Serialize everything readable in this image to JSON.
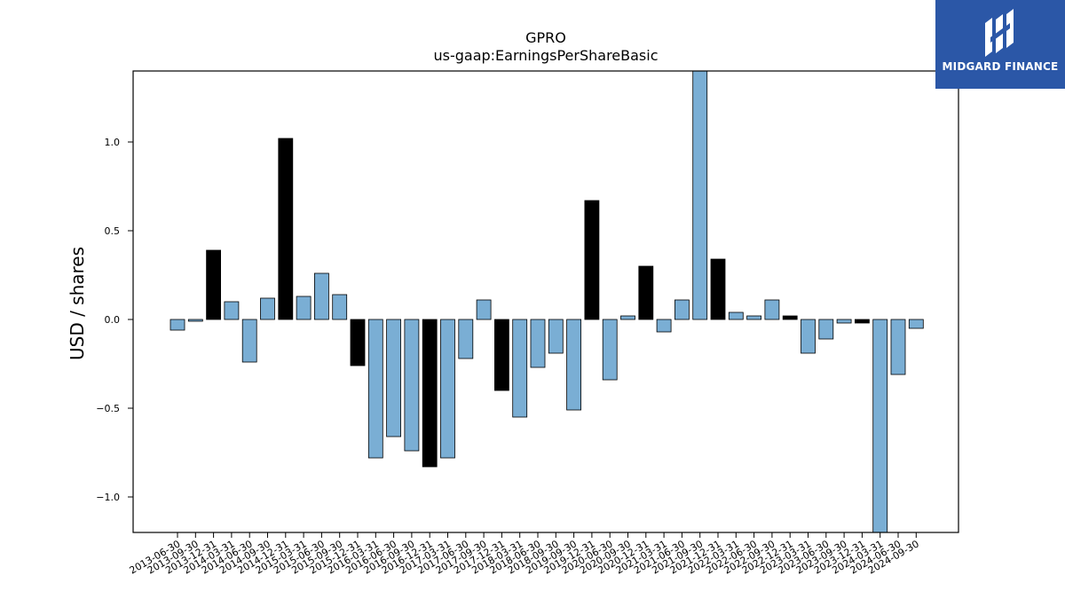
{
  "chart_data": {
    "type": "bar",
    "title": "GPRO",
    "subtitle": "us-gaap:EarningsPerShareBasic",
    "xlabel": "",
    "ylabel": "USD / shares",
    "ylim": [
      -1.2,
      1.4
    ],
    "yticks": [
      -1.0,
      -0.5,
      0.0,
      0.5,
      1.0
    ],
    "ytick_labels": [
      "−1.0",
      "−0.5",
      "0.0",
      "0.5",
      "1.0"
    ],
    "grid": false,
    "colors": {
      "quarterly": "#7aaed4",
      "annual": "#000000"
    },
    "categories": [
      "2013-06-30",
      "2013-09-30",
      "2013-12-31",
      "2014-03-31",
      "2014-06-30",
      "2014-09-30",
      "2014-12-31",
      "2015-03-31",
      "2015-06-30",
      "2015-09-30",
      "2015-12-31",
      "2016-03-31",
      "2016-06-30",
      "2016-09-30",
      "2016-12-31",
      "2017-03-31",
      "2017-06-30",
      "2017-09-30",
      "2017-12-31",
      "2018-03-31",
      "2018-06-30",
      "2018-09-30",
      "2019-09-30",
      "2019-12-31",
      "2020-06-30",
      "2020-09-30",
      "2020-12-31",
      "2021-03-31",
      "2021-06-30",
      "2021-09-30",
      "2021-12-31",
      "2022-03-31",
      "2022-06-30",
      "2022-09-30",
      "2022-12-31",
      "2023-03-31",
      "2023-06-30",
      "2023-09-30",
      "2023-12-31",
      "2024-03-31",
      "2024-06-30",
      "2024-09-30"
    ],
    "values": [
      -0.06,
      -0.01,
      0.39,
      0.1,
      -0.24,
      0.12,
      1.02,
      0.13,
      0.26,
      0.14,
      -0.26,
      -0.78,
      -0.66,
      -0.74,
      -0.83,
      -0.78,
      -0.22,
      0.11,
      -0.4,
      -0.55,
      -0.27,
      -0.19,
      -0.51,
      0.67,
      -0.34,
      0.02,
      0.3,
      -0.07,
      0.11,
      1.4,
      0.34,
      0.04,
      0.02,
      0.11,
      0.02,
      -0.19,
      -0.11,
      -0.02,
      -0.02,
      -1.2,
      -0.31,
      -0.05
    ],
    "bar_kind": [
      "q",
      "q",
      "a",
      "q",
      "q",
      "q",
      "a",
      "q",
      "q",
      "q",
      "a",
      "q",
      "q",
      "q",
      "a",
      "q",
      "q",
      "q",
      "a",
      "q",
      "q",
      "q",
      "q",
      "a",
      "q",
      "q",
      "a",
      "q",
      "q",
      "q",
      "a",
      "q",
      "q",
      "q",
      "a",
      "q",
      "q",
      "q",
      "a",
      "q",
      "q",
      "q"
    ]
  },
  "logo": {
    "text": "MIDGARD FINANCE",
    "icon": "midgard-logo-icon"
  }
}
